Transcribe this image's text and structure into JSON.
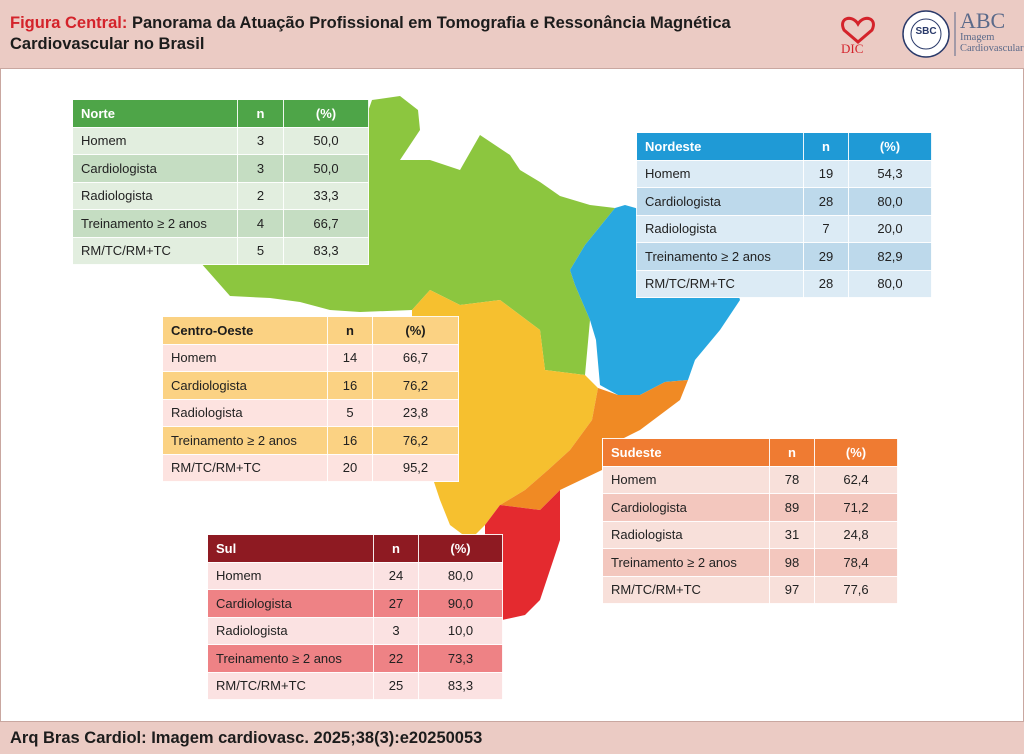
{
  "header": {
    "lead": "Figura Central:",
    "title": "Panorama da Atuação Profissional em Tomografia e Ressonância Magnética Cardiovascular no Brasil"
  },
  "logos": {
    "dic": "DIC",
    "sbc": "SBC",
    "abc_big": "ABC",
    "abc_line1": "Imagem",
    "abc_line2": "Cardiovascular"
  },
  "footer": {
    "citation": "Arq Bras Cardiol: Imagem cardiovasc. 2025;38(3):e20250053"
  },
  "chart_data": {
    "type": "table",
    "columns": [
      "n",
      "(%)"
    ],
    "regions": [
      {
        "name": "Norte",
        "color": "#4ea548",
        "rows": [
          {
            "label": "Homem",
            "n": "3",
            "pct": "50,0"
          },
          {
            "label": "Cardiologista",
            "n": "3",
            "pct": "50,0"
          },
          {
            "label": "Radiologista",
            "n": "2",
            "pct": "33,3"
          },
          {
            "label": "Treinamento ≥ 2 anos",
            "n": "4",
            "pct": "66,7"
          },
          {
            "label": "RM/TC/RM+TC",
            "n": "5",
            "pct": "83,3"
          }
        ]
      },
      {
        "name": "Nordeste",
        "color": "#1f9ad6",
        "rows": [
          {
            "label": "Homem",
            "n": "19",
            "pct": "54,3"
          },
          {
            "label": "Cardiologista",
            "n": "28",
            "pct": "80,0"
          },
          {
            "label": "Radiologista",
            "n": "7",
            "pct": "20,0"
          },
          {
            "label": "Treinamento ≥ 2 anos",
            "n": "29",
            "pct": "82,9"
          },
          {
            "label": "RM/TC/RM+TC",
            "n": "28",
            "pct": "80,0"
          }
        ]
      },
      {
        "name": "Centro-Oeste",
        "color": "#f6c02f",
        "rows": [
          {
            "label": "Homem",
            "n": "14",
            "pct": "66,7"
          },
          {
            "label": "Cardiologista",
            "n": "16",
            "pct": "76,2"
          },
          {
            "label": "Radiologista",
            "n": "5",
            "pct": "23,8"
          },
          {
            "label": "Treinamento ≥ 2 anos",
            "n": "16",
            "pct": "76,2"
          },
          {
            "label": "RM/TC/RM+TC",
            "n": "20",
            "pct": "95,2"
          }
        ]
      },
      {
        "name": "Sudeste",
        "color": "#ef7b32",
        "rows": [
          {
            "label": "Homem",
            "n": "78",
            "pct": "62,4"
          },
          {
            "label": "Cardiologista",
            "n": "89",
            "pct": "71,2"
          },
          {
            "label": "Radiologista",
            "n": "31",
            "pct": "24,8"
          },
          {
            "label": "Treinamento ≥ 2 anos",
            "n": "98",
            "pct": "78,4"
          },
          {
            "label": "RM/TC/RM+TC",
            "n": "97",
            "pct": "77,6"
          }
        ]
      },
      {
        "name": "Sul",
        "color": "#e42a2f",
        "rows": [
          {
            "label": "Homem",
            "n": "24",
            "pct": "80,0"
          },
          {
            "label": "Cardiologista",
            "n": "27",
            "pct": "90,0"
          },
          {
            "label": "Radiologista",
            "n": "3",
            "pct": "10,0"
          },
          {
            "label": "Treinamento ≥ 2 anos",
            "n": "22",
            "pct": "73,3"
          },
          {
            "label": "RM/TC/RM+TC",
            "n": "25",
            "pct": "83,3"
          }
        ]
      }
    ]
  }
}
